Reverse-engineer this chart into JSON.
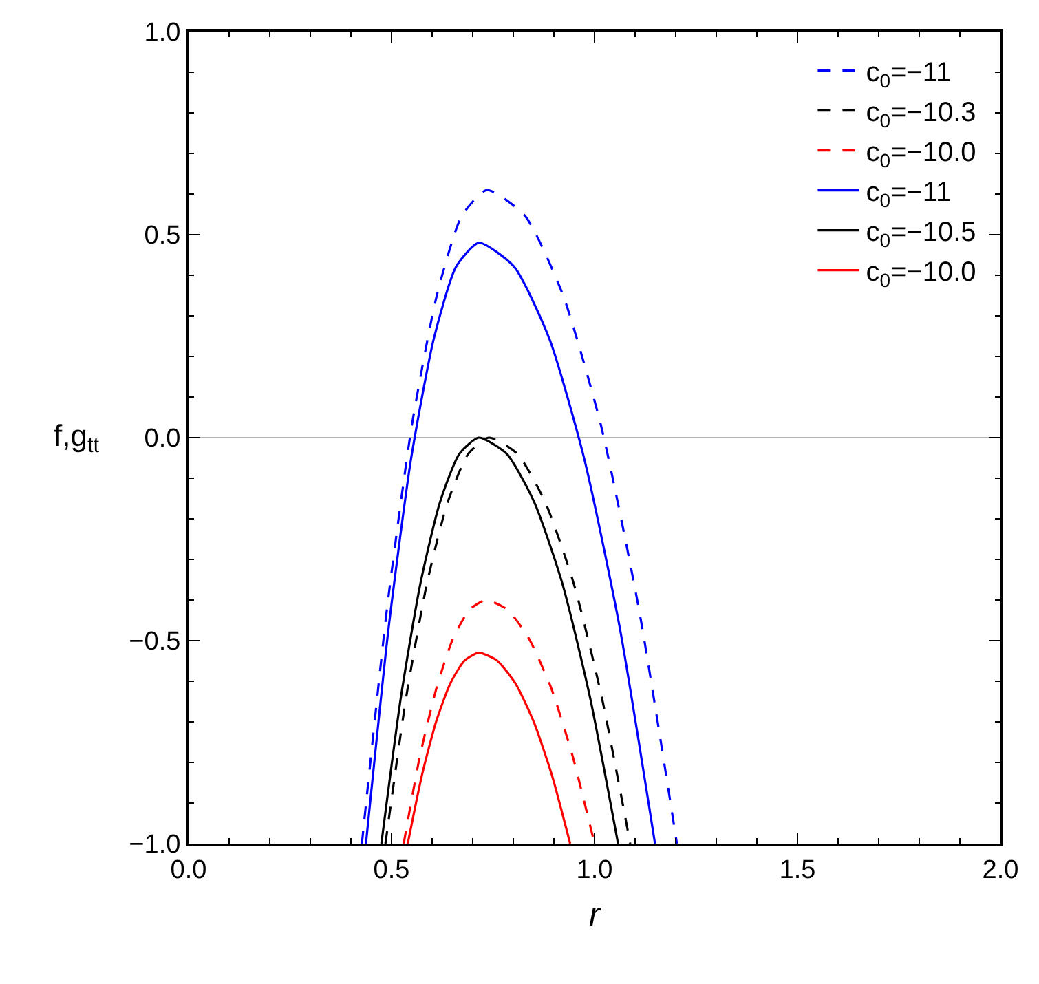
{
  "chart_data": {
    "type": "line",
    "xlabel": "r",
    "ylabel": "f,g$_{tt}$",
    "xlim": [
      0,
      2
    ],
    "xticks": [
      {
        "value": 0,
        "label": "0.0"
      },
      0.5,
      {
        "value": 1,
        "label": "1.0"
      },
      1.5,
      {
        "value": 2,
        "label": "2.0"
      }
    ],
    "ylim": [
      -1,
      1
    ],
    "yticks": [
      {
        "value": -1,
        "label": "−1.0"
      },
      {
        "value": -0.5,
        "label": "−0.5"
      },
      {
        "value": 0,
        "label": "0.0"
      },
      0.5,
      {
        "value": 1,
        "label": "1.0"
      }
    ],
    "grid": false,
    "legend": "top right",
    "marker": "none",
    "ref_lines": [
      {
        "axis": "y",
        "value": 0,
        "color": "#b3b3b3"
      }
    ],
    "series": [
      {
        "name": "c$_{0}$=−11",
        "color": "#0000ff",
        "line_style": "dashed",
        "x": [
          0.427,
          0.489,
          0.55,
          0.612,
          0.673,
          0.735,
          0.829,
          0.922,
          1.016,
          1.109,
          1.203
        ],
        "values": [
          -1,
          -0.42,
          0.03,
          0.352,
          0.546,
          0.61,
          0.546,
          0.352,
          0.03,
          -0.42,
          -1
        ]
      },
      {
        "name": "c$_{0}$=−10.3",
        "color": "#000000",
        "line_style": "dashed",
        "x": [
          0.485,
          0.536,
          0.587,
          0.638,
          0.689,
          0.74,
          0.81,
          0.879,
          0.949,
          1.018,
          1.088
        ],
        "values": [
          -1,
          -0.64,
          -0.36,
          -0.16,
          -0.04,
          0,
          -0.04,
          -0.16,
          -0.36,
          -0.64,
          -1
        ]
      },
      {
        "name": "c$_{0}$=−10.0",
        "color": "#ff0000",
        "line_style": "dashed",
        "x": [
          0.53,
          0.57,
          0.611,
          0.651,
          0.692,
          0.732,
          0.786,
          0.839,
          0.893,
          0.946,
          1.0
        ],
        "values": [
          -1,
          -0.784,
          -0.616,
          -0.496,
          -0.424,
          -0.4,
          -0.424,
          -0.496,
          -0.616,
          -0.784,
          -1
        ]
      },
      {
        "name": "c$_{0}$=−11",
        "color": "#0000ff",
        "line_style": "solid",
        "x": [
          0.437,
          0.493,
          0.548,
          0.604,
          0.659,
          0.715,
          0.802,
          0.889,
          0.975,
          1.062,
          1.149
        ],
        "values": [
          -1,
          -0.467,
          -0.053,
          0.243,
          0.421,
          0.48,
          0.421,
          0.243,
          -0.053,
          -0.467,
          -1
        ]
      },
      {
        "name": "c$_{0}$=−10.5",
        "color": "#000000",
        "line_style": "solid",
        "x": [
          0.475,
          0.523,
          0.571,
          0.619,
          0.667,
          0.715,
          0.784,
          0.852,
          0.921,
          0.989,
          1.058
        ],
        "values": [
          -1,
          -0.64,
          -0.36,
          -0.16,
          -0.04,
          0,
          -0.04,
          -0.16,
          -0.36,
          -0.64,
          -1
        ]
      },
      {
        "name": "c$_{0}$=−10.0",
        "color": "#ff0000",
        "line_style": "solid",
        "x": [
          0.54,
          0.575,
          0.61,
          0.645,
          0.68,
          0.715,
          0.76,
          0.805,
          0.85,
          0.895,
          0.94
        ],
        "values": [
          -1,
          -0.831,
          -0.699,
          -0.605,
          -0.549,
          -0.53,
          -0.549,
          -0.605,
          -0.699,
          -0.831,
          -1
        ]
      }
    ]
  }
}
